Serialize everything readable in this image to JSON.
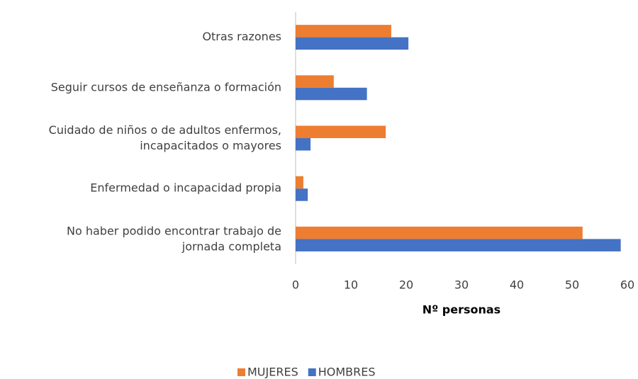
{
  "chart_data": {
    "type": "barh",
    "categories": [
      "Otras razones",
      "Seguir cursos de enseñanza o formación",
      "Cuidado de niños o de adultos enfermos, incapacitados o mayores",
      "Enfermedad o incapacidad propia",
      "No haber podido encontrar trabajo de jornada completa"
    ],
    "series": [
      {
        "name": "MUJERES",
        "color": "#ed7d31",
        "values": [
          17.3,
          6.9,
          16.3,
          1.4,
          51.9
        ]
      },
      {
        "name": "HOMBRES",
        "color": "#4472c4",
        "values": [
          20.4,
          12.9,
          2.7,
          2.2,
          58.8
        ]
      }
    ],
    "xlabel": "Nº personas",
    "xlim": [
      0,
      60
    ],
    "xticks": [
      0,
      10,
      20,
      30,
      40,
      50,
      60
    ],
    "grid": false,
    "legend": "bottom"
  }
}
